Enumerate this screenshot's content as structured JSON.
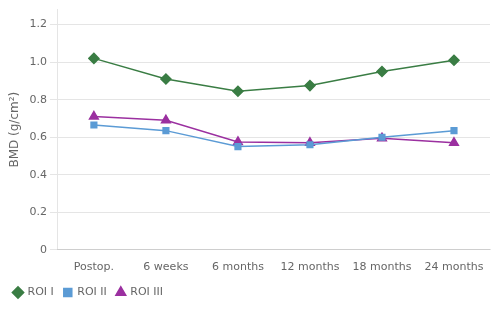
{
  "chart_data": {
    "type": "line",
    "ylabel": "BMD (g/cm²)",
    "categories": [
      "Postop.",
      "6 weeks",
      "6 months",
      "12 months",
      "18 months",
      "24 months"
    ],
    "series": [
      {
        "name": "ROI I",
        "color": "#3a7d44",
        "marker": "diamond",
        "values": [
          1.02,
          0.91,
          0.845,
          0.875,
          0.95,
          1.01
        ]
      },
      {
        "name": "ROI II",
        "color": "#5b9bd5",
        "marker": "square",
        "values": [
          0.665,
          0.635,
          0.55,
          0.56,
          0.6,
          0.635
        ]
      },
      {
        "name": "ROI III",
        "color": "#9b30a0",
        "marker": "triangle",
        "values": [
          0.71,
          0.69,
          0.575,
          0.57,
          0.595,
          0.57
        ]
      }
    ],
    "ylim": [
      0,
      1.28
    ],
    "yticks": [
      0,
      0.2,
      0.4,
      0.6,
      0.8,
      {
        "value": 1.0,
        "label": "1.0"
      },
      1.2
    ],
    "grid": true,
    "legend": "lower left"
  }
}
